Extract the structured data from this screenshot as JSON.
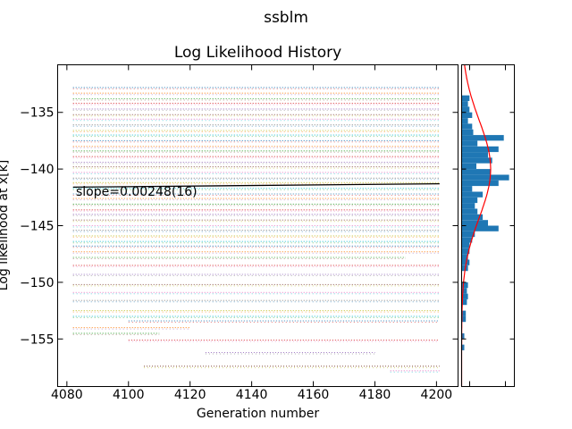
{
  "figure": {
    "suptitle": "ssblm"
  },
  "chart_data": [
    {
      "type": "scatter",
      "title": "Log Likelihood History",
      "xlabel": "Generation number",
      "ylabel": "Log likelihood at x[k]",
      "xlim": [
        4077,
        4207
      ],
      "ylim": [
        -159.2,
        -130.8
      ],
      "xticks": [
        4080,
        4100,
        4120,
        4140,
        4160,
        4180,
        4200
      ],
      "xtick_labels": [
        "4080",
        "4100",
        "4120",
        "4140",
        "4160",
        "4180",
        "4200"
      ],
      "yticks": [
        -135,
        -140,
        -145,
        -150,
        -155
      ],
      "ytick_labels": [
        "−135",
        "−140",
        "−145",
        "−150",
        "−155"
      ],
      "grid": false,
      "x_range": [
        4082,
        4201
      ],
      "annotation": "slope=0.00248(16)",
      "trend_line": {
        "x": [
          4082,
          4201
        ],
        "y": [
          -141.6,
          -141.3
        ],
        "color": "#000000"
      },
      "series_colors": [
        "#1f77b4",
        "#ff7f0e",
        "#2ca02c",
        "#d62728",
        "#9467bd",
        "#8c564b",
        "#e377c2",
        "#7f7f7f",
        "#bcbd22",
        "#17becf"
      ],
      "walker_levels": [
        {
          "y": -132.8,
          "x": [
            4082,
            4201
          ]
        },
        {
          "y": -133.3,
          "x": [
            4082,
            4201
          ]
        },
        {
          "y": -133.8,
          "x": [
            4082,
            4201
          ]
        },
        {
          "y": -134.2,
          "x": [
            4082,
            4201
          ]
        },
        {
          "y": -134.7,
          "x": [
            4082,
            4201
          ]
        },
        {
          "y": -135.2,
          "x": [
            4082,
            4201
          ]
        },
        {
          "y": -135.6,
          "x": [
            4082,
            4201
          ]
        },
        {
          "y": -136.1,
          "x": [
            4082,
            4201
          ]
        },
        {
          "y": -136.6,
          "x": [
            4082,
            4201
          ]
        },
        {
          "y": -137.0,
          "x": [
            4082,
            4201
          ]
        },
        {
          "y": -137.5,
          "x": [
            4082,
            4201
          ]
        },
        {
          "y": -138.0,
          "x": [
            4082,
            4201
          ]
        },
        {
          "y": -138.4,
          "x": [
            4082,
            4201
          ]
        },
        {
          "y": -138.9,
          "x": [
            4082,
            4201
          ]
        },
        {
          "y": -139.4,
          "x": [
            4082,
            4201
          ]
        },
        {
          "y": -139.8,
          "x": [
            4082,
            4201
          ]
        },
        {
          "y": -140.3,
          "x": [
            4082,
            4201
          ]
        },
        {
          "y": -140.8,
          "x": [
            4082,
            4201
          ]
        },
        {
          "y": -141.2,
          "x": [
            4082,
            4201
          ]
        },
        {
          "y": -141.7,
          "x": [
            4082,
            4201
          ]
        },
        {
          "y": -142.2,
          "x": [
            4082,
            4201
          ]
        },
        {
          "y": -142.6,
          "x": [
            4082,
            4201
          ]
        },
        {
          "y": -143.1,
          "x": [
            4082,
            4201
          ]
        },
        {
          "y": -143.6,
          "x": [
            4082,
            4201
          ]
        },
        {
          "y": -144.0,
          "x": [
            4082,
            4201
          ]
        },
        {
          "y": -144.5,
          "x": [
            4082,
            4201
          ]
        },
        {
          "y": -145.0,
          "x": [
            4082,
            4201
          ]
        },
        {
          "y": -145.4,
          "x": [
            4082,
            4201
          ]
        },
        {
          "y": -145.9,
          "x": [
            4082,
            4201
          ]
        },
        {
          "y": -146.4,
          "x": [
            4082,
            4201
          ]
        },
        {
          "y": -146.8,
          "x": [
            4082,
            4201
          ]
        },
        {
          "y": -147.3,
          "x": [
            4082,
            4201
          ]
        },
        {
          "y": -147.8,
          "x": [
            4082,
            4190
          ]
        },
        {
          "y": -148.5,
          "x": [
            4082,
            4201
          ]
        },
        {
          "y": -149.3,
          "x": [
            4082,
            4201
          ]
        },
        {
          "y": -150.2,
          "x": [
            4082,
            4201
          ]
        },
        {
          "y": -150.9,
          "x": [
            4082,
            4201
          ]
        },
        {
          "y": -151.6,
          "x": [
            4082,
            4201
          ]
        },
        {
          "y": -152.5,
          "x": [
            4082,
            4201
          ]
        },
        {
          "y": -153.0,
          "x": [
            4082,
            4201
          ]
        },
        {
          "y": -153.4,
          "x": [
            4100,
            4201
          ]
        },
        {
          "y": -154.0,
          "x": [
            4082,
            4120
          ]
        },
        {
          "y": -154.5,
          "x": [
            4082,
            4110
          ]
        },
        {
          "y": -155.1,
          "x": [
            4100,
            4201
          ]
        },
        {
          "y": -156.2,
          "x": [
            4125,
            4180
          ]
        },
        {
          "y": -157.4,
          "x": [
            4105,
            4201
          ]
        },
        {
          "y": -157.8,
          "x": [
            4185,
            4201
          ]
        }
      ],
      "histogram": {
        "orientation": "horizontal",
        "color": "#1f77b4",
        "fit_curve": {
          "type": "normal",
          "mean": -140.0,
          "std": 4.3,
          "color": "#ff0000"
        },
        "bins": [
          {
            "y0": -134.0,
            "y1": -133.5,
            "count": 0.15
          },
          {
            "y0": -134.5,
            "y1": -134.0,
            "count": 0.12
          },
          {
            "y0": -135.0,
            "y1": -134.5,
            "count": 0.15
          },
          {
            "y0": -135.5,
            "y1": -135.0,
            "count": 0.2
          },
          {
            "y0": -136.0,
            "y1": -135.5,
            "count": 0.12
          },
          {
            "y0": -136.5,
            "y1": -136.0,
            "count": 0.2
          },
          {
            "y0": -137.0,
            "y1": -136.5,
            "count": 0.22
          },
          {
            "y0": -137.5,
            "y1": -137.0,
            "count": 0.8
          },
          {
            "y0": -138.0,
            "y1": -137.5,
            "count": 0.3
          },
          {
            "y0": -138.5,
            "y1": -138.0,
            "count": 0.7
          },
          {
            "y0": -139.0,
            "y1": -138.5,
            "count": 0.5
          },
          {
            "y0": -139.5,
            "y1": -139.0,
            "count": 0.58
          },
          {
            "y0": -140.0,
            "y1": -139.5,
            "count": 0.28
          },
          {
            "y0": -140.5,
            "y1": -140.0,
            "count": 0.55
          },
          {
            "y0": -141.0,
            "y1": -140.5,
            "count": 0.9
          },
          {
            "y0": -141.5,
            "y1": -141.0,
            "count": 0.7
          },
          {
            "y0": -142.0,
            "y1": -141.5,
            "count": 0.2
          },
          {
            "y0": -142.5,
            "y1": -142.0,
            "count": 0.4
          },
          {
            "y0": -143.0,
            "y1": -142.5,
            "count": 0.3
          },
          {
            "y0": -143.5,
            "y1": -143.0,
            "count": 0.25
          },
          {
            "y0": -144.0,
            "y1": -143.5,
            "count": 0.3
          },
          {
            "y0": -144.5,
            "y1": -144.0,
            "count": 0.4
          },
          {
            "y0": -145.0,
            "y1": -144.5,
            "count": 0.5
          },
          {
            "y0": -145.5,
            "y1": -145.0,
            "count": 0.7
          },
          {
            "y0": -146.0,
            "y1": -145.5,
            "count": 0.25
          },
          {
            "y0": -146.5,
            "y1": -146.0,
            "count": 0.2
          },
          {
            "y0": -147.0,
            "y1": -146.5,
            "count": 0.15
          },
          {
            "y0": -147.5,
            "y1": -147.0,
            "count": 0.15
          },
          {
            "y0": -148.0,
            "y1": -147.5,
            "count": 0.12
          },
          {
            "y0": -148.5,
            "y1": -148.0,
            "count": 0.15
          },
          {
            "y0": -149.0,
            "y1": -148.5,
            "count": 0.12
          },
          {
            "y0": -150.5,
            "y1": -150.0,
            "count": 0.12
          },
          {
            "y0": -151.0,
            "y1": -150.5,
            "count": 0.1
          },
          {
            "y0": -151.5,
            "y1": -151.0,
            "count": 0.12
          },
          {
            "y0": -152.0,
            "y1": -151.5,
            "count": 0.1
          },
          {
            "y0": -153.0,
            "y1": -152.5,
            "count": 0.08
          },
          {
            "y0": -153.5,
            "y1": -153.0,
            "count": 0.08
          },
          {
            "y0": -155.0,
            "y1": -154.5,
            "count": 0.05
          },
          {
            "y0": -156.0,
            "y1": -155.5,
            "count": 0.05
          }
        ]
      }
    }
  ]
}
